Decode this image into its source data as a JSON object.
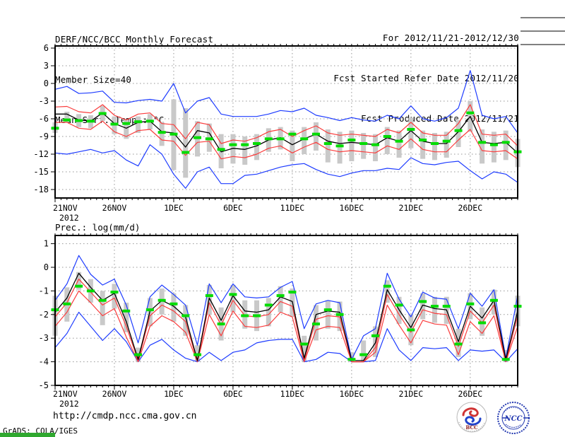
{
  "header": {
    "title": "DERF/NCC/BCC Monthly Forecast",
    "member_size": "Member Size=40",
    "temp_chart_title": "Mean Surf. Temp.: °C",
    "for_range": "For 2012/11/21-2012/12/30",
    "refer_date": "Fcst Started Refer Date 2012/11/20",
    "produced_date": "Fcst Produced Date 2012/11/21"
  },
  "footer": {
    "url": "http://cmdp.ncc.cma.gov.cn",
    "grads_credit": "GrADS: COLA/IGES",
    "bcc_label": "BCC",
    "ncc_label": "NCC"
  },
  "colors": {
    "blue": "#1e3cff",
    "red": "#fa3c3c",
    "black": "#000000",
    "green": "#00dc00",
    "bar_gray": "#c9c9c9",
    "grid_gray": "#969696",
    "frame": "#000000",
    "bcc_red": "#c03030",
    "bcc_blue": "#2244cc",
    "ncc_blue": "#2238b0"
  },
  "chart_data": [
    {
      "id": "temperature",
      "type": "line",
      "title": "Mean Surf. Temp.: °C",
      "n_days": 40,
      "x_tick_labels": [
        "21NOV",
        "26NOV",
        "1DEC",
        "6DEC",
        "11DEC",
        "16DEC",
        "21DEC",
        "26DEC"
      ],
      "x_tick_days": [
        0,
        5,
        10,
        15,
        20,
        25,
        30,
        35
      ],
      "x_year_label": "2012",
      "y_ticks": [
        6,
        3,
        0,
        -3,
        -6,
        -9,
        -12,
        -15,
        -18
      ],
      "ylim": [
        -19.5,
        6.4
      ],
      "grid": true,
      "series": [
        {
          "name": "ensemble-max",
          "color": "blue",
          "values": [
            -1.0,
            -0.5,
            -1.7,
            -1.6,
            -1.3,
            -3.2,
            -3.3,
            -2.9,
            -2.7,
            -3.0,
            0.0,
            -5.0,
            -3.0,
            -2.4,
            -5.2,
            -5.6,
            -5.6,
            -5.6,
            -5.2,
            -4.6,
            -4.8,
            -4.2,
            -5.4,
            -5.8,
            -6.3,
            -5.8,
            -6.2,
            -6.4,
            -5.4,
            -6.0,
            -3.8,
            -6.0,
            -6.4,
            -5.8,
            -4.2,
            2.2,
            -5.4,
            -6.0,
            -5.6,
            -8.4
          ]
        },
        {
          "name": "ensemble-min",
          "color": "blue",
          "values": [
            -11.8,
            -12.0,
            -11.6,
            -11.2,
            -11.8,
            -11.4,
            -13.0,
            -14.0,
            -10.4,
            -12.0,
            -15.4,
            -17.8,
            -15.0,
            -14.2,
            -17.0,
            -17.0,
            -15.6,
            -15.4,
            -14.8,
            -14.2,
            -13.8,
            -13.6,
            -14.6,
            -15.4,
            -15.8,
            -15.2,
            -14.8,
            -14.8,
            -14.4,
            -14.6,
            -12.6,
            -13.6,
            -13.8,
            -13.4,
            -13.2,
            -14.8,
            -16.2,
            -15.0,
            -15.4,
            -16.8
          ]
        },
        {
          "name": "upper-spread",
          "color": "red",
          "values": [
            -4.0,
            -3.9,
            -4.8,
            -5.0,
            -3.6,
            -5.4,
            -6.2,
            -5.2,
            -5.0,
            -6.8,
            -7.0,
            -9.4,
            -6.6,
            -7.0,
            -10.2,
            -9.6,
            -9.8,
            -9.2,
            -8.2,
            -7.8,
            -9.0,
            -8.0,
            -7.2,
            -8.4,
            -8.8,
            -8.6,
            -8.8,
            -9.0,
            -7.8,
            -8.4,
            -6.6,
            -8.4,
            -8.8,
            -8.8,
            -6.8,
            -3.6,
            -8.6,
            -8.8,
            -8.6,
            -10.6
          ]
        },
        {
          "name": "lower-spread",
          "color": "red",
          "values": [
            -6.6,
            -6.6,
            -7.6,
            -7.8,
            -6.4,
            -8.2,
            -9.0,
            -8.0,
            -7.8,
            -9.6,
            -9.8,
            -12.2,
            -10.0,
            -9.8,
            -12.8,
            -12.4,
            -12.6,
            -12.0,
            -11.0,
            -10.6,
            -11.8,
            -10.8,
            -10.0,
            -11.2,
            -11.6,
            -11.4,
            -11.6,
            -11.8,
            -10.6,
            -11.2,
            -9.4,
            -11.2,
            -11.6,
            -11.6,
            -9.6,
            -7.8,
            -11.4,
            -11.6,
            -11.4,
            -12.8
          ]
        },
        {
          "name": "ensemble-mean",
          "color": "black",
          "values": [
            -5.2,
            -5.2,
            -6.2,
            -6.4,
            -5.0,
            -6.8,
            -7.6,
            -6.6,
            -6.4,
            -8.2,
            -8.4,
            -10.8,
            -8.0,
            -8.4,
            -11.6,
            -11.0,
            -11.2,
            -10.6,
            -9.6,
            -9.2,
            -10.4,
            -9.4,
            -8.6,
            -9.8,
            -10.2,
            -10.0,
            -10.2,
            -10.4,
            -9.2,
            -9.8,
            -8.0,
            -9.8,
            -10.2,
            -10.2,
            -8.2,
            -5.6,
            -10.0,
            -10.2,
            -10.0,
            -11.8
          ]
        }
      ],
      "obs_green_dashes": [
        -7.6,
        -6.2,
        -6.3,
        -6.4,
        -5.1,
        -6.9,
        -6.8,
        -6.5,
        -6.4,
        -8.3,
        -8.6,
        -11.7,
        -9.2,
        -9.4,
        -11.2,
        -10.4,
        -10.4,
        -10.2,
        -9.4,
        -9.4,
        -8.6,
        -9.4,
        -8.6,
        -10.2,
        -10.6,
        -9.6,
        -10.2,
        -10.4,
        -9.0,
        -9.8,
        -7.8,
        -9.6,
        -10.2,
        -9.8,
        -8.0,
        -5.0,
        -10.0,
        -10.4,
        -10.0,
        -11.6
      ],
      "spread_bars": [
        [
          -8.4,
          -6.6
        ],
        [
          -6.6,
          -4.8
        ],
        [
          -7.4,
          -5.2
        ],
        [
          -7.6,
          -5.4
        ],
        [
          -6.4,
          -3.8
        ],
        [
          -8.6,
          -5.6
        ],
        [
          -9.4,
          -6.2
        ],
        [
          -8.4,
          -5.6
        ],
        [
          -7.8,
          -5.2
        ],
        [
          -10.6,
          -6.6
        ],
        [
          -14.7,
          -2.7
        ],
        [
          -16.0,
          -4.2
        ],
        [
          -12.4,
          -6.4
        ],
        [
          -11.6,
          -6.8
        ],
        [
          -14.4,
          -8.6
        ],
        [
          -13.6,
          -8.6
        ],
        [
          -13.8,
          -9.0
        ],
        [
          -13.0,
          -8.6
        ],
        [
          -11.6,
          -7.6
        ],
        [
          -11.2,
          -7.4
        ],
        [
          -13.2,
          -8.0
        ],
        [
          -12.0,
          -7.4
        ],
        [
          -11.4,
          -6.6
        ],
        [
          -13.4,
          -7.8
        ],
        [
          -13.6,
          -8.2
        ],
        [
          -13.2,
          -8.0
        ],
        [
          -12.8,
          -8.4
        ],
        [
          -13.2,
          -8.6
        ],
        [
          -12.0,
          -7.4
        ],
        [
          -12.6,
          -8.0
        ],
        [
          -11.0,
          -5.8
        ],
        [
          -12.8,
          -8.0
        ],
        [
          -13.0,
          -8.4
        ],
        [
          -12.6,
          -8.2
        ],
        [
          -10.8,
          -6.2
        ],
        [
          -8.2,
          -3.0
        ],
        [
          -13.6,
          -7.8
        ],
        [
          -13.4,
          -8.2
        ],
        [
          -13.0,
          -8.0
        ],
        [
          -14.2,
          -9.4
        ]
      ]
    },
    {
      "id": "precipitation",
      "type": "line",
      "title": "Prec.: log(mm/d)",
      "n_days": 40,
      "x_tick_labels": [
        "21NOV",
        "26NOV",
        "1DEC",
        "6DEC",
        "11DEC",
        "16DEC",
        "21DEC",
        "26DEC"
      ],
      "x_tick_days": [
        0,
        5,
        10,
        15,
        20,
        25,
        30,
        35
      ],
      "x_year_label": "2012",
      "y_ticks": [
        1,
        0,
        -1,
        -2,
        -3,
        -4,
        -5
      ],
      "ylim": [
        -5,
        1.35
      ],
      "grid": true,
      "series": [
        {
          "name": "ensemble-max",
          "color": "blue",
          "values": [
            -1.4,
            -0.7,
            0.5,
            -0.3,
            -0.75,
            -0.5,
            -1.6,
            -3.2,
            -1.25,
            -0.75,
            -1.15,
            -1.6,
            -3.3,
            -0.7,
            -1.5,
            -0.7,
            -1.25,
            -1.3,
            -1.25,
            -0.85,
            -0.6,
            -2.6,
            -1.55,
            -1.4,
            -1.5,
            -3.9,
            -2.9,
            -2.6,
            -0.25,
            -1.35,
            -2.1,
            -1.05,
            -1.3,
            -1.35,
            -2.6,
            -1.1,
            -1.65,
            -0.95,
            -3.85,
            -1.2
          ]
        },
        {
          "name": "ensemble-min",
          "color": "blue",
          "values": [
            -3.4,
            -2.8,
            -1.9,
            -2.5,
            -3.1,
            -2.6,
            -3.15,
            -4.0,
            -3.3,
            -3.05,
            -3.5,
            -3.85,
            -4.0,
            -3.6,
            -3.95,
            -3.6,
            -3.5,
            -3.2,
            -3.1,
            -3.05,
            -3.05,
            -4.0,
            -3.9,
            -3.6,
            -3.65,
            -4.0,
            -4.0,
            -3.95,
            -2.6,
            -3.5,
            -3.95,
            -3.4,
            -3.45,
            -3.4,
            -3.95,
            -3.5,
            -3.55,
            -3.5,
            -4.0,
            -3.45
          ]
        },
        {
          "name": "upper-spread",
          "color": "red",
          "values": [
            -2.1,
            -1.5,
            -0.5,
            -1.05,
            -1.6,
            -1.3,
            -2.5,
            -3.95,
            -2.05,
            -1.6,
            -1.85,
            -2.3,
            -4.0,
            -1.5,
            -2.45,
            -1.4,
            -2.05,
            -2.1,
            -2.0,
            -1.45,
            -1.65,
            -3.95,
            -2.2,
            -2.05,
            -2.1,
            -4.0,
            -4.0,
            -3.4,
            -1.15,
            -2.0,
            -2.75,
            -1.8,
            -1.95,
            -2.0,
            -3.35,
            -1.85,
            -2.35,
            -1.6,
            -4.0,
            -2.05
          ]
        },
        {
          "name": "lower-spread",
          "color": "red",
          "values": [
            -2.5,
            -1.9,
            -1.0,
            -1.5,
            -2.05,
            -1.75,
            -2.95,
            -4.0,
            -2.5,
            -2.05,
            -2.3,
            -2.75,
            -4.0,
            -2.0,
            -2.9,
            -1.85,
            -2.5,
            -2.55,
            -2.45,
            -1.9,
            -2.1,
            -4.0,
            -2.65,
            -2.5,
            -2.55,
            -4.0,
            -4.0,
            -3.6,
            -1.6,
            -2.45,
            -3.2,
            -2.25,
            -2.4,
            -2.45,
            -3.7,
            -2.3,
            -2.8,
            -2.05,
            -4.0,
            -2.5
          ]
        },
        {
          "name": "ensemble-mean",
          "color": "black",
          "values": [
            -1.9,
            -1.3,
            -0.25,
            -0.85,
            -1.4,
            -1.1,
            -2.3,
            -3.9,
            -1.85,
            -1.4,
            -1.65,
            -2.1,
            -3.95,
            -1.3,
            -2.25,
            -1.2,
            -1.85,
            -1.9,
            -1.8,
            -1.25,
            -1.45,
            -3.85,
            -2.0,
            -1.85,
            -1.9,
            -3.95,
            -3.95,
            -3.2,
            -0.95,
            -1.8,
            -2.55,
            -1.6,
            -1.75,
            -1.8,
            -3.15,
            -1.65,
            -2.15,
            -1.4,
            -3.9,
            -1.85
          ]
        }
      ],
      "obs_green_dashes": [
        -1.8,
        -1.55,
        -0.8,
        -1.0,
        -1.4,
        -1.05,
        -1.85,
        -3.7,
        -1.8,
        -1.4,
        -1.55,
        -2.05,
        -3.7,
        -1.2,
        -2.4,
        -1.15,
        -2.05,
        -2.05,
        -1.6,
        -1.2,
        -1.05,
        -3.25,
        -2.4,
        -1.8,
        -2.0,
        -3.9,
        -3.7,
        -2.9,
        -0.8,
        -1.6,
        -2.65,
        -1.45,
        -1.65,
        -1.65,
        -3.25,
        -1.55,
        -2.35,
        -1.4,
        -3.9,
        -1.65
      ],
      "spread_bars": [
        [
          -2.9,
          -1.2
        ],
        [
          -2.3,
          -0.85
        ],
        [
          -0.95,
          -0.2
        ],
        [
          -1.5,
          -0.5
        ],
        [
          -2.45,
          -1.0
        ],
        [
          -1.75,
          -0.7
        ],
        [
          -2.75,
          -1.5
        ],
        [
          -4.0,
          -3.4
        ],
        [
          -2.5,
          -1.3
        ],
        [
          -2.0,
          -0.9
        ],
        [
          -2.3,
          -1.1
        ],
        [
          -2.9,
          -1.6
        ],
        [
          -4.0,
          -3.3
        ],
        [
          -2.0,
          -0.75
        ],
        [
          -3.1,
          -1.7
        ],
        [
          -1.9,
          -0.75
        ],
        [
          -2.6,
          -1.4
        ],
        [
          -2.7,
          -1.4
        ],
        [
          -2.5,
          -1.3
        ],
        [
          -1.9,
          -0.8
        ],
        [
          -2.1,
          -0.9
        ],
        [
          -4.0,
          -2.9
        ],
        [
          -3.1,
          -1.6
        ],
        [
          -2.6,
          -1.4
        ],
        [
          -2.7,
          -1.45
        ],
        [
          -4.0,
          -3.6
        ],
        [
          -4.0,
          -3.1
        ],
        [
          -3.8,
          -2.5
        ],
        [
          -1.5,
          -0.55
        ],
        [
          -2.4,
          -1.25
        ],
        [
          -3.3,
          -2.0
        ],
        [
          -2.2,
          -1.1
        ],
        [
          -2.35,
          -1.25
        ],
        [
          -2.4,
          -1.25
        ],
        [
          -3.8,
          -2.6
        ],
        [
          -2.2,
          -1.1
        ],
        [
          -2.9,
          -1.7
        ],
        [
          -2.0,
          -0.95
        ],
        [
          -4.0,
          -3.5
        ],
        [
          -2.5,
          -1.2
        ]
      ]
    }
  ]
}
